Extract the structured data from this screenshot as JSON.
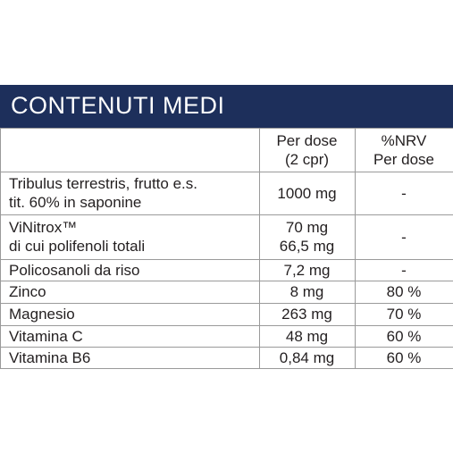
{
  "header": {
    "title": "CONTENUTI MEDI"
  },
  "table": {
    "columns": {
      "dose": [
        "Per dose",
        "(2 cpr)"
      ],
      "nrv": [
        "%NRV",
        "Per dose"
      ]
    },
    "rows": [
      {
        "name": [
          "Tribulus terrestris, frutto e.s.",
          "tit. 60% in saponine"
        ],
        "dose": [
          "1000 mg"
        ],
        "nrv": [
          "-"
        ]
      },
      {
        "name": [
          "ViNitrox™",
          "di cui polifenoli totali"
        ],
        "dose": [
          "70 mg",
          "66,5 mg"
        ],
        "nrv": [
          "-"
        ]
      },
      {
        "name": [
          "Policosanoli da riso"
        ],
        "dose": [
          "7,2 mg"
        ],
        "nrv": [
          "-"
        ]
      },
      {
        "name": [
          "Zinco"
        ],
        "dose": [
          "8 mg"
        ],
        "nrv": [
          "80 %"
        ]
      },
      {
        "name": [
          "Magnesio"
        ],
        "dose": [
          "263 mg"
        ],
        "nrv": [
          "70 %"
        ]
      },
      {
        "name": [
          "Vitamina C"
        ],
        "dose": [
          "48 mg"
        ],
        "nrv": [
          "60 %"
        ]
      },
      {
        "name": [
          "Vitamina B6"
        ],
        "dose": [
          "0,84 mg"
        ],
        "nrv": [
          "60 %"
        ]
      }
    ]
  }
}
